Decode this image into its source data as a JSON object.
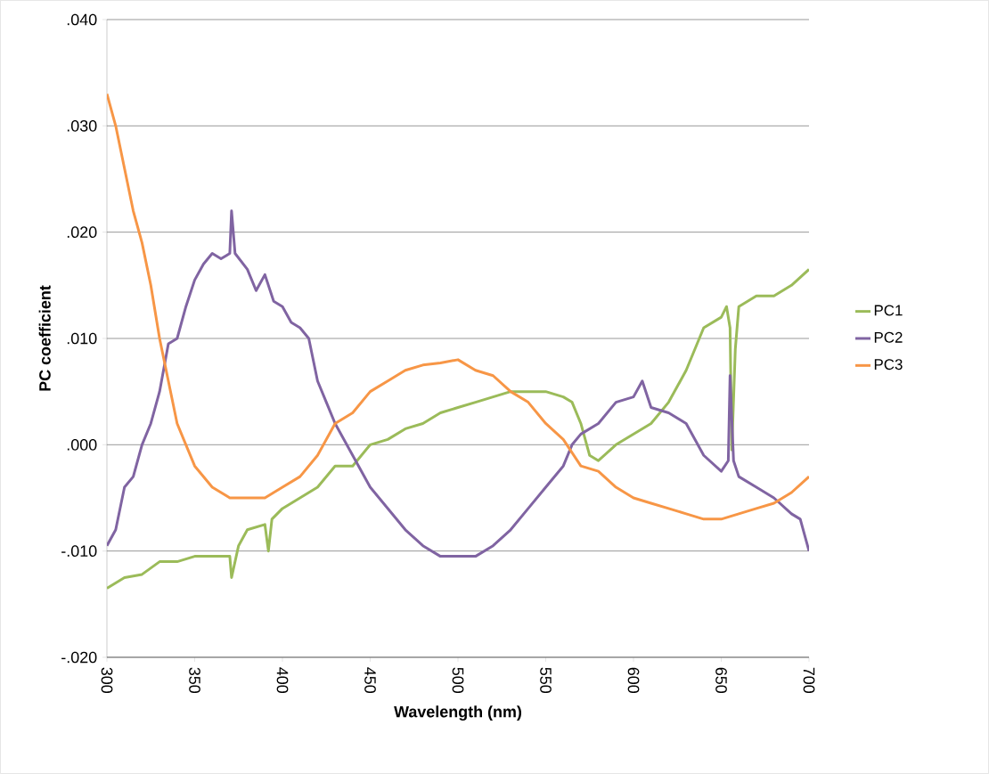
{
  "chart_data": {
    "type": "line",
    "xlabel": "Wavelength (nm)",
    "ylabel": "PC coefficient",
    "xlim": [
      300,
      700
    ],
    "xticks": [
      300,
      350,
      400,
      450,
      500,
      550,
      600,
      650,
      700
    ],
    "ylim": [
      -0.02,
      0.04
    ],
    "yticks": [
      {
        "value": -0.02,
        "label": "-.020"
      },
      {
        "value": -0.01,
        "label": "-.010"
      },
      {
        "value": 0,
        "label": ".000"
      },
      {
        "value": 0.01,
        "label": ".010"
      },
      {
        "value": 0.02,
        "label": ".020"
      },
      {
        "value": 0.03,
        "label": ".030"
      },
      {
        "value": 0.04,
        "label": ".040"
      }
    ],
    "grid": "y",
    "legend": "right",
    "marker": "none",
    "line_style": "solid",
    "series": [
      {
        "name": "PC1",
        "color": "#9bbb59",
        "x": [
          300,
          310,
          320,
          330,
          340,
          350,
          360,
          370,
          371,
          375,
          380,
          390,
          392,
          394,
          400,
          410,
          420,
          430,
          440,
          450,
          460,
          470,
          480,
          490,
          500,
          510,
          520,
          530,
          540,
          550,
          560,
          565,
          570,
          575,
          580,
          590,
          600,
          610,
          620,
          630,
          640,
          650,
          653,
          655,
          656,
          658,
          660,
          670,
          680,
          690,
          700
        ],
        "values": [
          -0.0135,
          -0.0125,
          -0.0122,
          -0.011,
          -0.011,
          -0.0105,
          -0.0105,
          -0.0105,
          -0.0125,
          -0.0095,
          -0.008,
          -0.0075,
          -0.01,
          -0.007,
          -0.006,
          -0.005,
          -0.004,
          -0.002,
          -0.002,
          0.0,
          0.0005,
          0.0015,
          0.002,
          0.003,
          0.0035,
          0.004,
          0.0045,
          0.005,
          0.005,
          0.005,
          0.0045,
          0.004,
          0.002,
          -0.001,
          -0.0015,
          0.0,
          0.001,
          0.002,
          0.004,
          0.007,
          0.011,
          0.012,
          0.013,
          0.011,
          -0.0005,
          0.009,
          0.013,
          0.014,
          0.014,
          0.015,
          0.0165
        ]
      },
      {
        "name": "PC2",
        "color": "#8064a2",
        "x": [
          300,
          305,
          310,
          315,
          320,
          325,
          330,
          335,
          340,
          345,
          350,
          355,
          360,
          365,
          370,
          371,
          373,
          380,
          385,
          390,
          395,
          400,
          405,
          410,
          415,
          420,
          425,
          430,
          440,
          450,
          460,
          470,
          480,
          490,
          500,
          510,
          520,
          530,
          540,
          550,
          560,
          565,
          570,
          580,
          590,
          600,
          605,
          610,
          620,
          630,
          640,
          650,
          654,
          655,
          657,
          660,
          670,
          680,
          690,
          695,
          700
        ],
        "values": [
          -0.0095,
          -0.008,
          -0.004,
          -0.003,
          0.0,
          0.002,
          0.005,
          0.0095,
          0.01,
          0.013,
          0.0155,
          0.017,
          0.018,
          0.0175,
          0.018,
          0.022,
          0.018,
          0.0165,
          0.0145,
          0.016,
          0.0135,
          0.013,
          0.0115,
          0.011,
          0.01,
          0.006,
          0.004,
          0.002,
          -0.001,
          -0.004,
          -0.006,
          -0.008,
          -0.0095,
          -0.0105,
          -0.0105,
          -0.0105,
          -0.0095,
          -0.008,
          -0.006,
          -0.004,
          -0.002,
          0.0,
          0.001,
          0.002,
          0.004,
          0.0045,
          0.006,
          0.0035,
          0.003,
          0.002,
          -0.001,
          -0.0025,
          -0.0015,
          0.0065,
          -0.0015,
          -0.003,
          -0.004,
          -0.005,
          -0.0065,
          -0.007,
          -0.01
        ]
      },
      {
        "name": "PC3",
        "color": "#f79646",
        "x": [
          300,
          305,
          310,
          315,
          320,
          325,
          330,
          335,
          340,
          345,
          350,
          360,
          370,
          380,
          390,
          400,
          410,
          420,
          430,
          440,
          450,
          460,
          470,
          480,
          490,
          500,
          510,
          520,
          530,
          540,
          550,
          560,
          570,
          580,
          590,
          600,
          610,
          620,
          630,
          640,
          650,
          660,
          670,
          680,
          690,
          700
        ],
        "values": [
          0.033,
          0.03,
          0.026,
          0.022,
          0.019,
          0.015,
          0.01,
          0.006,
          0.002,
          0.0,
          -0.002,
          -0.004,
          -0.005,
          -0.005,
          -0.005,
          -0.004,
          -0.003,
          -0.001,
          0.002,
          0.003,
          0.005,
          0.006,
          0.007,
          0.0075,
          0.0077,
          0.008,
          0.007,
          0.0065,
          0.005,
          0.004,
          0.002,
          0.0005,
          -0.002,
          -0.0025,
          -0.004,
          -0.005,
          -0.0055,
          -0.006,
          -0.0065,
          -0.007,
          -0.007,
          -0.0065,
          -0.006,
          -0.0055,
          -0.0045,
          -0.003
        ]
      }
    ]
  }
}
